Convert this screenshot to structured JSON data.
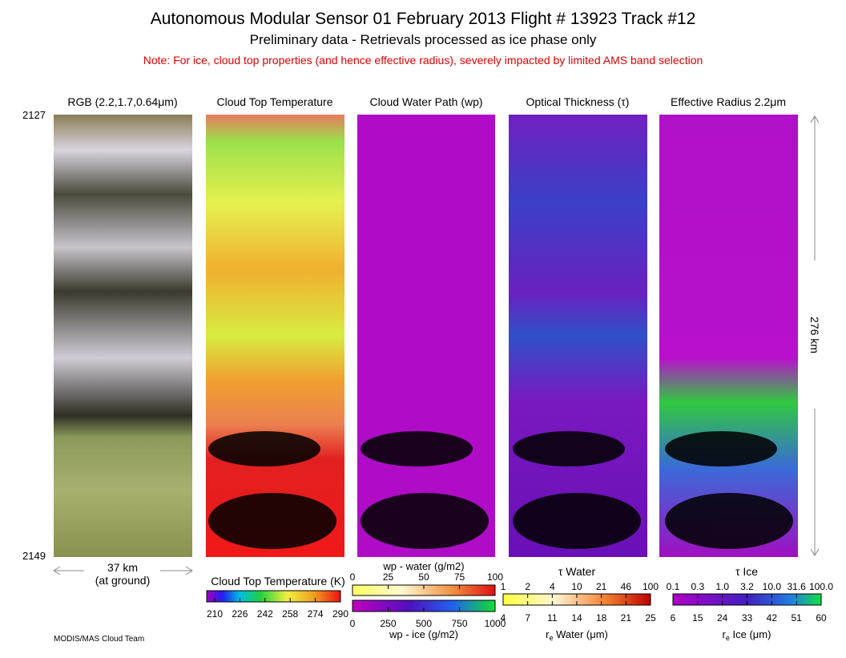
{
  "header": {
    "title": "Autonomous Modular Sensor  01 February 2013  Flight # 13923 Track #12",
    "subtitle": "Preliminary data - Retrievals processed as ice phase only",
    "note": "Note: For ice, cloud top properties (and hence effective radius), severely impacted by limited AMS band selection"
  },
  "panels": [
    {
      "title": "RGB (2.2,1.7,0.64μm)"
    },
    {
      "title": "Cloud Top Temperature"
    },
    {
      "title": "Cloud Water Path (wp)"
    },
    {
      "title": "Optical Thickness (τ)"
    },
    {
      "title": "Effective Radius 2.2μm"
    }
  ],
  "scanlines": {
    "start": "2127",
    "end": "2149"
  },
  "scale": {
    "width": "37 km",
    "width_note": "(at ground)",
    "length": "276 km"
  },
  "colorbars": {
    "temperature": {
      "label": "Cloud Top Temperature (K)",
      "ticks": [
        "210",
        "226",
        "242",
        "258",
        "274",
        "290"
      ]
    },
    "water_path": {
      "top_label": "wp - water (g/m2)",
      "top_ticks": [
        "0",
        "25",
        "50",
        "75",
        "100"
      ],
      "bottom_label": "wp - ice (g/m2)",
      "bottom_ticks": [
        "0",
        "250",
        "500",
        "750",
        "1000"
      ]
    },
    "tau_water": {
      "top_label": "τ Water",
      "top_ticks": [
        "1",
        "2",
        "4",
        "10",
        "21",
        "46",
        "100"
      ],
      "bottom_label": {
        "r": "r",
        "sub": "e",
        "rest": " Water (μm)"
      },
      "bottom_ticks": [
        "4",
        "7",
        "11",
        "14",
        "18",
        "21",
        "25"
      ]
    },
    "tau_ice": {
      "top_label": "τ Ice",
      "top_ticks": [
        "0.1",
        "0.3",
        "1.0",
        "3.2",
        "10.0",
        "31.6",
        "100.0"
      ],
      "bottom_label": {
        "r": "r",
        "sub": "e",
        "rest": " Ice (μm)"
      },
      "bottom_ticks": [
        "6",
        "15",
        "24",
        "33",
        "42",
        "51",
        "60"
      ]
    }
  },
  "footer": "MODIS/MAS Cloud Team"
}
